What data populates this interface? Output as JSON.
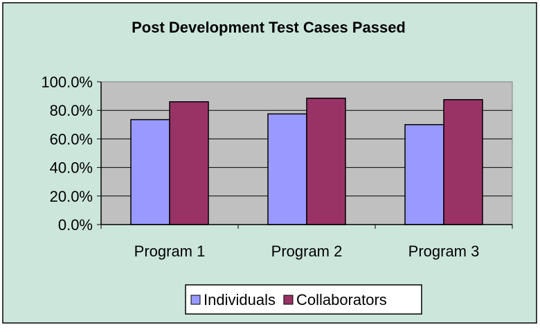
{
  "chart_data": {
    "type": "bar",
    "title": "Post Development Test Cases Passed",
    "xlabel": "",
    "ylabel": "",
    "categories": [
      "Program 1",
      "Program 2",
      "Program 3"
    ],
    "series": [
      {
        "name": "Individuals",
        "values": [
          73.5,
          77.5,
          70.0
        ],
        "color": "#9999ff"
      },
      {
        "name": "Collaborators",
        "values": [
          86.0,
          88.5,
          87.5
        ],
        "color": "#993366"
      }
    ],
    "ylim": [
      0,
      100
    ],
    "yticks": [
      "0.0%",
      "20.0%",
      "40.0%",
      "60.0%",
      "80.0%",
      "100.0%"
    ],
    "ytick_values": [
      0,
      20,
      40,
      60,
      80,
      100
    ],
    "grid": true,
    "legend_position": "bottom",
    "colors": {
      "chart_background": "#cce6dc",
      "plot_background": "#c0c0c0",
      "gridline": "#000000",
      "legend_background": "#ffffff"
    }
  }
}
